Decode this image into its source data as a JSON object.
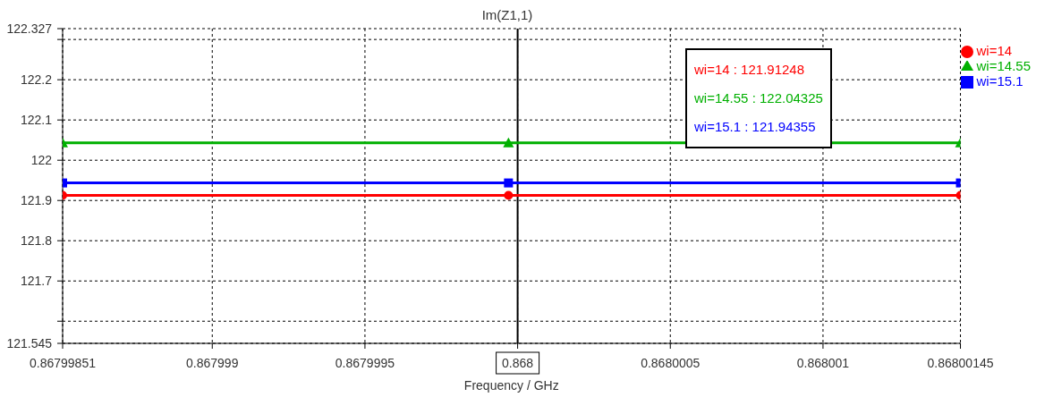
{
  "chart_data": {
    "type": "line",
    "title": "Im(Z1,1)",
    "xlabel": "Frequency / GHz",
    "xlim": [
      0.86799851,
      0.86800145
    ],
    "xticks": [
      0.86799851,
      0.867999,
      0.8679995,
      0.868,
      0.8680005,
      0.868001,
      0.86800145
    ],
    "ylim": [
      121.545,
      122.327
    ],
    "yticks": [
      121.545,
      {
        "value": 121.6,
        "label": null
      },
      121.7,
      121.8,
      121.9,
      122,
      122.1,
      122.2,
      {
        "value": 122.3,
        "label": null
      },
      122.327
    ],
    "grid": true,
    "legend": "right",
    "series": [
      {
        "name": "wi=14",
        "color": "#ff0000",
        "marker": "circle",
        "x": [
          0.86799851,
          0.86799997,
          0.86800145
        ],
        "values": [
          121.91248,
          121.91248,
          121.91248
        ]
      },
      {
        "name": "wi=14.55",
        "color": "#00b000",
        "marker": "triangle",
        "x": [
          0.86799851,
          0.86799997,
          0.86800145
        ],
        "values": [
          122.04325,
          122.04325,
          122.04325
        ]
      },
      {
        "name": "wi=15.1",
        "color": "#0000ff",
        "marker": "square",
        "x": [
          0.86799851,
          0.86799997,
          0.86800145
        ],
        "values": [
          121.94355,
          121.94355,
          121.94355
        ]
      }
    ],
    "ref_lines": [
      {
        "axis": "x",
        "value": 0.868,
        "color": "#000000"
      }
    ],
    "annotations": [
      "wi=14 : 121.91248",
      "wi=14.55 : 122.04325",
      "wi=15.1 : 121.94355"
    ]
  }
}
